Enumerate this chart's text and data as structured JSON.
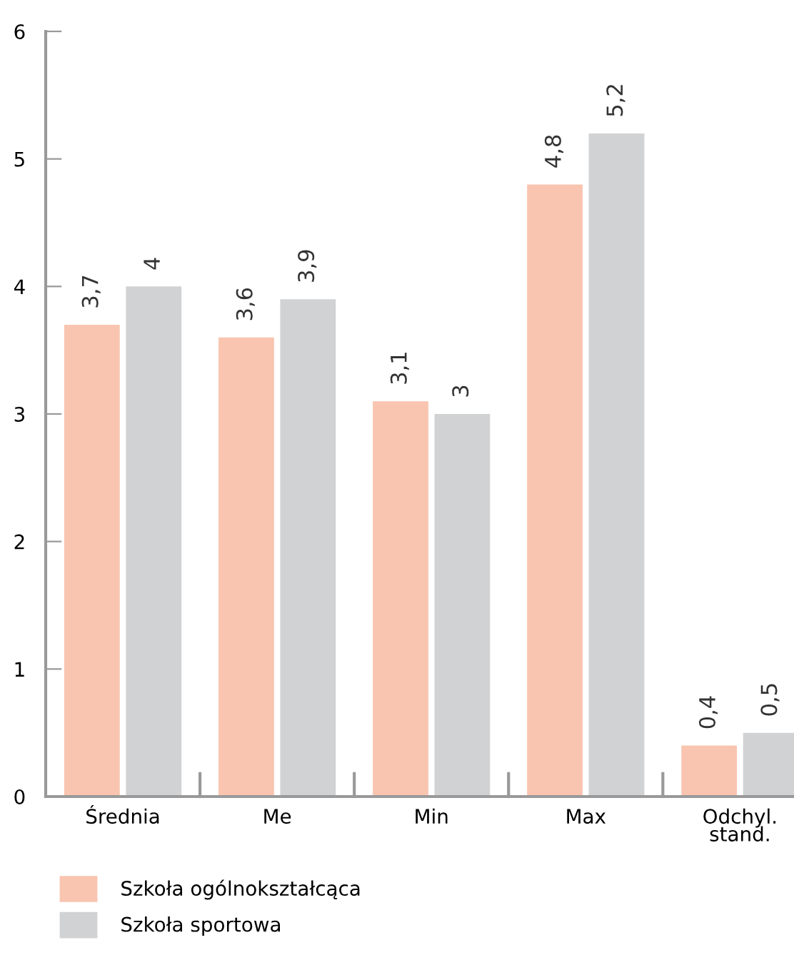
{
  "chart_data": {
    "type": "bar",
    "categories": [
      "Średnia",
      "Me",
      "Min",
      "Max",
      "Odchyl.\nstand."
    ],
    "series": [
      {
        "name": "Szkoła ogólnokształcąca",
        "color": "#f9c5b0",
        "values": [
          3.7,
          3.6,
          3.1,
          4.8,
          0.4
        ],
        "value_labels": [
          "3,7",
          "3,6",
          "3,1",
          "4,8",
          "0,4"
        ]
      },
      {
        "name": "Szkoła sportowa",
        "color": "#d1d2d4",
        "values": [
          4,
          3.9,
          3,
          5.2,
          0.5
        ],
        "value_labels": [
          "4",
          "3,9",
          "3",
          "5,2",
          "0,5"
        ]
      }
    ],
    "ylim": [
      0,
      6
    ],
    "yticks": [
      0,
      1,
      2,
      3,
      4,
      5,
      6
    ],
    "grid": false,
    "legend": "bottom left"
  }
}
